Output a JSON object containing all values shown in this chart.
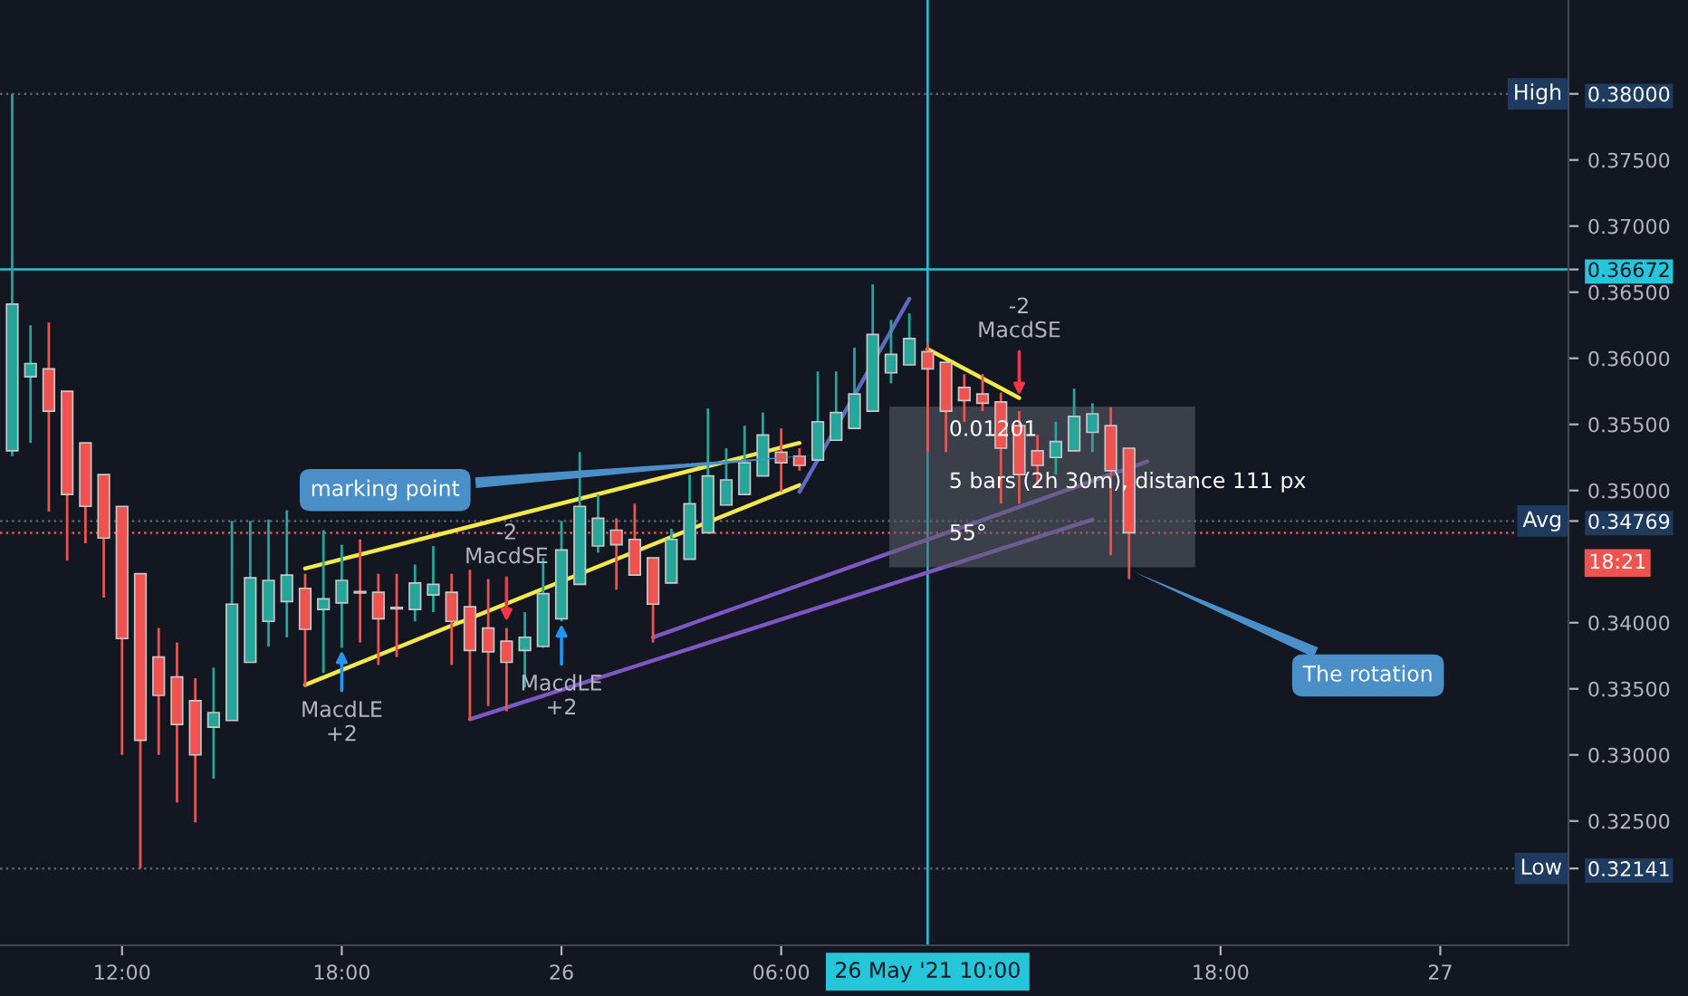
{
  "chart_data": {
    "type": "candlestick",
    "x": [
      "2021-05-25T09:00",
      "2021-05-25T09:30",
      "2021-05-25T10:00",
      "2021-05-25T10:30",
      "2021-05-25T11:00",
      "2021-05-25T11:30",
      "2021-05-25T12:00",
      "2021-05-25T12:30",
      "2021-05-25T13:00",
      "2021-05-25T13:30",
      "2021-05-25T14:00",
      "2021-05-25T14:30",
      "2021-05-25T15:00",
      "2021-05-25T15:30",
      "2021-05-25T16:00",
      "2021-05-25T16:30",
      "2021-05-25T17:00",
      "2021-05-25T17:30",
      "2021-05-25T18:00",
      "2021-05-25T18:30",
      "2021-05-25T19:00",
      "2021-05-25T19:30",
      "2021-05-25T20:00",
      "2021-05-25T20:30",
      "2021-05-25T21:00",
      "2021-05-25T21:30",
      "2021-05-25T22:00",
      "2021-05-25T22:30",
      "2021-05-25T23:00",
      "2021-05-25T23:30",
      "2021-05-26T00:00",
      "2021-05-26T00:30",
      "2021-05-26T01:00",
      "2021-05-26T01:30",
      "2021-05-26T02:00",
      "2021-05-26T02:30",
      "2021-05-26T03:00",
      "2021-05-26T03:30",
      "2021-05-26T04:00",
      "2021-05-26T04:30",
      "2021-05-26T05:00",
      "2021-05-26T05:30",
      "2021-05-26T06:00",
      "2021-05-26T06:30",
      "2021-05-26T07:00",
      "2021-05-26T07:30",
      "2021-05-26T08:00",
      "2021-05-26T08:30",
      "2021-05-26T09:00",
      "2021-05-26T09:30",
      "2021-05-26T10:00",
      "2021-05-26T10:30",
      "2021-05-26T11:00",
      "2021-05-26T11:30",
      "2021-05-26T12:00",
      "2021-05-26T12:30",
      "2021-05-26T13:00",
      "2021-05-26T13:30",
      "2021-05-26T14:00",
      "2021-05-26T14:30",
      "2021-05-26T15:00",
      "2021-05-26T15:30"
    ],
    "ohlc": [
      [
        0.353,
        0.38,
        0.3526,
        0.3641
      ],
      [
        0.3586,
        0.3625,
        0.3536,
        0.3596
      ],
      [
        0.3592,
        0.3627,
        0.3484,
        0.356
      ],
      [
        0.3575,
        0.3575,
        0.3447,
        0.3497
      ],
      [
        0.3536,
        0.3536,
        0.346,
        0.3488
      ],
      [
        0.3512,
        0.3512,
        0.3419,
        0.3464
      ],
      [
        0.3488,
        0.3488,
        0.33,
        0.3388
      ],
      [
        0.3437,
        0.3437,
        0.32141,
        0.3311
      ],
      [
        0.3374,
        0.3396,
        0.33,
        0.3345
      ],
      [
        0.3359,
        0.3385,
        0.3264,
        0.3323
      ],
      [
        0.3341,
        0.3358,
        0.3249,
        0.33
      ],
      [
        0.3321,
        0.3366,
        0.3282,
        0.3332
      ],
      [
        0.3326,
        0.3477,
        0.3326,
        0.3414
      ],
      [
        0.337,
        0.3477,
        0.337,
        0.3434
      ],
      [
        0.3401,
        0.3478,
        0.3382,
        0.3432
      ],
      [
        0.3416,
        0.3485,
        0.3389,
        0.3436
      ],
      [
        0.3426,
        0.3437,
        0.3352,
        0.3395
      ],
      [
        0.341,
        0.347,
        0.3362,
        0.3418
      ],
      [
        0.3415,
        0.3459,
        0.3381,
        0.3432
      ],
      [
        0.3423,
        0.3463,
        0.3385,
        0.3423
      ],
      [
        0.3423,
        0.3437,
        0.3368,
        0.3403
      ],
      [
        0.3411,
        0.3437,
        0.3374,
        0.3411
      ],
      [
        0.341,
        0.3444,
        0.3401,
        0.343
      ],
      [
        0.3421,
        0.3458,
        0.3408,
        0.3429
      ],
      [
        0.3423,
        0.3437,
        0.3368,
        0.3401
      ],
      [
        0.3412,
        0.344,
        0.3326,
        0.3379
      ],
      [
        0.3396,
        0.3433,
        0.3337,
        0.3378
      ],
      [
        0.3386,
        0.3396,
        0.3333,
        0.337
      ],
      [
        0.3379,
        0.3408,
        0.3351,
        0.3389
      ],
      [
        0.3382,
        0.3449,
        0.3381,
        0.3422
      ],
      [
        0.3403,
        0.3477,
        0.3401,
        0.3455
      ],
      [
        0.3429,
        0.3529,
        0.3429,
        0.3488
      ],
      [
        0.3458,
        0.3497,
        0.3453,
        0.3479
      ],
      [
        0.347,
        0.3479,
        0.3425,
        0.3459
      ],
      [
        0.3463,
        0.349,
        0.3436,
        0.3436
      ],
      [
        0.3449,
        0.3449,
        0.3385,
        0.3414
      ],
      [
        0.343,
        0.3471,
        0.343,
        0.3463
      ],
      [
        0.3448,
        0.3512,
        0.3448,
        0.349
      ],
      [
        0.3468,
        0.3562,
        0.3468,
        0.3511
      ],
      [
        0.3489,
        0.3532,
        0.3489,
        0.3508
      ],
      [
        0.3497,
        0.3549,
        0.3497,
        0.3521
      ],
      [
        0.3511,
        0.3559,
        0.3511,
        0.3542
      ],
      [
        0.3529,
        0.3547,
        0.3499,
        0.3521
      ],
      [
        0.3526,
        0.3532,
        0.3515,
        0.3519
      ],
      [
        0.3523,
        0.359,
        0.3523,
        0.3552
      ],
      [
        0.3538,
        0.359,
        0.3538,
        0.3559
      ],
      [
        0.3547,
        0.3608,
        0.3547,
        0.3573
      ],
      [
        0.356,
        0.3656,
        0.356,
        0.3618
      ],
      [
        0.3589,
        0.3629,
        0.3581,
        0.3603
      ],
      [
        0.3595,
        0.3634,
        0.3595,
        0.3615
      ],
      [
        0.3605,
        0.3611,
        0.3529,
        0.3592
      ],
      [
        0.3597,
        0.3597,
        0.3529,
        0.356
      ],
      [
        0.3578,
        0.3588,
        0.3552,
        0.3568
      ],
      [
        0.3573,
        0.3588,
        0.356,
        0.3566
      ],
      [
        0.3567,
        0.3574,
        0.349,
        0.3532
      ],
      [
        0.3549,
        0.356,
        0.349,
        0.3512
      ],
      [
        0.353,
        0.3542,
        0.3504,
        0.3519
      ],
      [
        0.3525,
        0.3552,
        0.3512,
        0.3537
      ],
      [
        0.353,
        0.3577,
        0.353,
        0.3556
      ],
      [
        0.3544,
        0.3566,
        0.3529,
        0.3558
      ],
      [
        0.3549,
        0.3563,
        0.3451,
        0.3515
      ],
      [
        0.3532,
        0.3532,
        0.3433,
        0.3468
      ]
    ],
    "colors": [
      "#26a69a",
      "#26a69a",
      "#ef5350",
      "#ef5350",
      "#ef5350",
      "#ef5350",
      "#ef5350",
      "#ef5350",
      "#ef5350",
      "#ef5350",
      "#ef5350",
      "#26a69a",
      "#26a69a",
      "#26a69a",
      "#26a69a",
      "#26a69a",
      "#ef5350",
      "#26a69a",
      "#26a69a",
      "#ef5350",
      "#ef5350",
      "#ef5350",
      "#26a69a",
      "#26a69a",
      "#ef5350",
      "#ef5350",
      "#ef5350",
      "#ef5350",
      "#26a69a",
      "#26a69a",
      "#26a69a",
      "#26a69a",
      "#26a69a",
      "#ef5350",
      "#ef5350",
      "#ef5350",
      "#26a69a",
      "#26a69a",
      "#26a69a",
      "#26a69a",
      "#26a69a",
      "#26a69a",
      "#ef5350",
      "#ef5350",
      "#26a69a",
      "#26a69a",
      "#26a69a",
      "#26a69a",
      "#26a69a",
      "#26a69a",
      "#ef5350",
      "#ef5350",
      "#ef5350",
      "#ef5350",
      "#ef5350",
      "#ef5350",
      "#ef5350",
      "#26a69a",
      "#26a69a",
      "#26a69a",
      "#ef5350",
      "#ef5350"
    ],
    "series": [
      {
        "type": "line",
        "color": "#f5e94a",
        "x": [
          "2021-05-25T17:00",
          "2021-05-26T06:30"
        ],
        "values": [
          0.3441,
          0.3536
        ]
      },
      {
        "type": "line",
        "color": "#f5e94a",
        "x": [
          "2021-05-25T17:00",
          "2021-05-26T06:30"
        ],
        "values": [
          0.3353,
          0.3504
        ]
      },
      {
        "type": "line",
        "color": "#f5e94a",
        "x": [
          "2021-05-26T10:00",
          "2021-05-26T12:30"
        ],
        "values": [
          0.3607,
          0.357
        ]
      },
      {
        "type": "line",
        "color": "#7e57c2",
        "x": [
          "2021-05-25T21:30",
          "2021-05-26T14:30"
        ],
        "values": [
          0.3327,
          0.3478
        ]
      },
      {
        "type": "line",
        "color": "#7e57c2",
        "x": [
          "2021-05-26T02:30",
          "2021-05-26T16:00"
        ],
        "values": [
          0.3389,
          0.3522
        ]
      },
      {
        "type": "line",
        "color": "#5c6bc0",
        "x": [
          "2021-05-26T06:30",
          "2021-05-26T09:30"
        ],
        "values": [
          0.3499,
          0.3645
        ]
      }
    ],
    "ref_lines": [
      {
        "axis": "y",
        "value": 0.38,
        "label": "High"
      },
      {
        "axis": "y",
        "value": 0.34769,
        "label": "Avg"
      },
      {
        "axis": "y",
        "value": 0.32141,
        "label": "Low"
      },
      {
        "axis": "y",
        "value": 0.36672,
        "label": null,
        "color": "#26c6da",
        "line_style": "solid"
      },
      {
        "axis": "y",
        "value": 0.3468,
        "label": null,
        "color": "#ef5350",
        "line_style": "dotted"
      },
      {
        "axis": "x",
        "value": "2021-05-26T10:00",
        "label": "26 May '21 10:00",
        "color": "#26c6da",
        "line_style": "solid"
      }
    ],
    "annotations": [
      {
        "text": "marking point",
        "x": "2021-05-26T07:00",
        "y": 0.3527
      },
      {
        "text": "The rotation",
        "x": "2021-05-26T15:30",
        "y": 0.344
      },
      {
        "text": "MacdLE\n+2",
        "x": "2021-05-25T18:00",
        "y": 0.3381
      },
      {
        "text": "-2\nMacdSE",
        "x": "2021-05-25T22:30",
        "y": 0.3399
      },
      {
        "text": "MacdLE\n+2",
        "x": "2021-05-26T00:00",
        "y": 0.3401
      },
      {
        "text": "-2\nMacdSE",
        "x": "2021-05-26T12:30",
        "y": 0.357
      },
      "0.01201",
      "5 bars (2h 30m), distance 111 px",
      "55°",
      "18:21"
    ],
    "xlim": [
      "2021-05-25T08:40",
      "2021-05-27T03:30"
    ],
    "xticks": [
      {
        "value": "2021-05-25T12:00",
        "label": "12:00"
      },
      {
        "value": "2021-05-25T18:00",
        "label": "18:00"
      },
      {
        "value": "2021-05-26T00:00",
        "label": "26"
      },
      {
        "value": "2021-05-26T06:00",
        "label": "06:00"
      },
      {
        "value": "2021-05-26T18:00",
        "label": "18:00"
      },
      {
        "value": "2021-05-27T00:00",
        "label": "27"
      }
    ],
    "ylim": [
      0.3156,
      0.3871
    ],
    "yticks": [
      {
        "value": 0.32141,
        "label": "0.32141"
      },
      {
        "value": 0.325,
        "label": "0.32500"
      },
      {
        "value": 0.33,
        "label": "0.33000"
      },
      {
        "value": 0.335,
        "label": "0.33500"
      },
      {
        "value": 0.34,
        "label": "0.34000"
      },
      {
        "value": 0.34769,
        "label": "0.34769"
      },
      {
        "value": 0.35,
        "label": "0.35000"
      },
      {
        "value": 0.355,
        "label": "0.35500"
      },
      {
        "value": 0.36,
        "label": "0.36000"
      },
      {
        "value": 0.365,
        "label": "0.36500"
      },
      {
        "value": 0.36672,
        "label": "0.36672"
      },
      {
        "value": 0.37,
        "label": "0.37000"
      },
      {
        "value": 0.375,
        "label": "0.37500"
      },
      {
        "value": 0.38,
        "label": "0.38000"
      }
    ]
  }
}
